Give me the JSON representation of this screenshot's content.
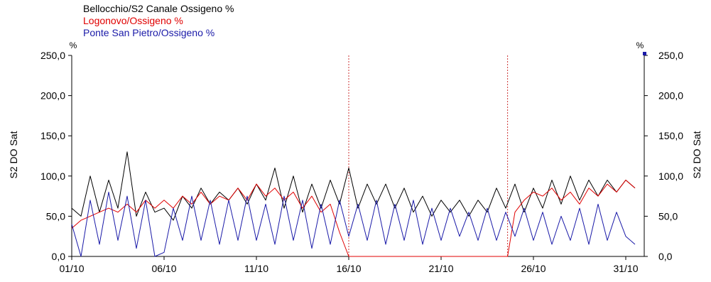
{
  "chart_data": {
    "type": "line",
    "legend": [
      {
        "label": "Bellocchio/S2 Canale Ossigeno %",
        "color": "#000000"
      },
      {
        "label": "Logonovo/Ossigeno %",
        "color": "#e00000"
      },
      {
        "label": "Ponte San Pietro/Ossigeno %",
        "color": "#1a1aa8"
      }
    ],
    "ylabel_left": "S2 DO Sat",
    "ylabel_right": "S2 DO Sat",
    "unit_left": "%",
    "unit_right": "%",
    "ylim": [
      0,
      250
    ],
    "yticks": [
      "0,0",
      "50,0",
      "100,0",
      "150,0",
      "200,0",
      "250,0"
    ],
    "xlim": [
      1,
      32
    ],
    "xticks": [
      {
        "label": "01/10",
        "day": 1
      },
      {
        "label": "06/10",
        "day": 6
      },
      {
        "label": "11/10",
        "day": 11
      },
      {
        "label": "16/10",
        "day": 16
      },
      {
        "label": "21/10",
        "day": 21
      },
      {
        "label": "26/10",
        "day": 26
      },
      {
        "label": "31/10",
        "day": 31
      }
    ],
    "markers_day": [
      16.0,
      24.6
    ],
    "series": [
      {
        "name": "Bellocchio/S2 Canale Ossigeno %",
        "color": "#000000",
        "x": [
          1.0,
          1.5,
          2.0,
          2.5,
          3.0,
          3.5,
          4.0,
          4.5,
          5.0,
          5.5,
          6.0,
          6.5,
          7.0,
          7.5,
          8.0,
          8.5,
          9.0,
          9.5,
          10.0,
          10.5,
          11.0,
          11.5,
          12.0,
          12.5,
          13.0,
          13.5,
          14.0,
          14.5,
          15.0,
          15.5,
          16.0,
          16.5,
          17.0,
          17.5,
          18.0,
          18.5,
          19.0,
          19.5,
          20.0,
          20.5,
          21.0,
          21.5,
          22.0,
          22.5,
          23.0,
          23.5,
          24.0,
          24.5,
          25.0,
          25.5,
          26.0,
          26.5,
          27.0,
          27.5,
          28.0,
          28.5,
          29.0,
          29.5,
          30.0,
          30.5,
          31.0,
          31.5
        ],
        "y": [
          60,
          50,
          100,
          55,
          95,
          60,
          130,
          50,
          80,
          55,
          60,
          45,
          75,
          60,
          85,
          65,
          80,
          70,
          85,
          65,
          90,
          70,
          110,
          60,
          100,
          55,
          90,
          60,
          95,
          65,
          110,
          60,
          90,
          65,
          90,
          60,
          85,
          55,
          75,
          50,
          70,
          55,
          70,
          50,
          70,
          55,
          85,
          60,
          90,
          55,
          85,
          60,
          95,
          65,
          100,
          70,
          95,
          75,
          95,
          80,
          95,
          85
        ]
      },
      {
        "name": "Logonovo/Ossigeno %",
        "color": "#e00000",
        "x": [
          1.0,
          1.5,
          2.0,
          2.5,
          3.0,
          3.5,
          4.0,
          4.5,
          5.0,
          5.5,
          6.0,
          6.5,
          7.0,
          7.5,
          8.0,
          8.5,
          9.0,
          9.5,
          10.0,
          10.5,
          11.0,
          11.5,
          12.0,
          12.5,
          13.0,
          13.5,
          14.0,
          14.5,
          15.0,
          15.5,
          16.0,
          24.6,
          25.0,
          25.5,
          26.0,
          26.5,
          27.0,
          27.5,
          28.0,
          28.5,
          29.0,
          29.5,
          30.0,
          30.5,
          31.0,
          31.5
        ],
        "y": [
          35,
          45,
          50,
          55,
          60,
          55,
          65,
          55,
          70,
          60,
          70,
          60,
          75,
          65,
          80,
          65,
          75,
          70,
          85,
          70,
          90,
          75,
          85,
          70,
          80,
          60,
          75,
          55,
          65,
          30,
          0,
          0,
          55,
          70,
          80,
          75,
          85,
          70,
          80,
          65,
          85,
          75,
          90,
          80,
          95,
          85
        ]
      },
      {
        "name": "Ponte San Pietro/Ossigeno %",
        "color": "#1a1aa8",
        "x": [
          1.0,
          1.5,
          2.0,
          2.5,
          3.0,
          3.5,
          4.0,
          4.5,
          5.0,
          5.5,
          6.0,
          6.5,
          7.0,
          7.5,
          8.0,
          8.5,
          9.0,
          9.5,
          10.0,
          10.5,
          11.0,
          11.5,
          12.0,
          12.5,
          13.0,
          13.5,
          14.0,
          14.5,
          15.0,
          15.5,
          16.0,
          16.5,
          17.0,
          17.5,
          18.0,
          18.5,
          19.0,
          19.5,
          20.0,
          20.5,
          21.0,
          21.5,
          22.0,
          22.5,
          23.0,
          23.5,
          24.0,
          24.5,
          25.0,
          25.5,
          26.0,
          26.5,
          27.0,
          27.5,
          28.0,
          28.5,
          29.0,
          29.5,
          30.0,
          30.5,
          31.0,
          31.5
        ],
        "y": [
          40,
          0,
          70,
          15,
          80,
          20,
          75,
          10,
          70,
          0,
          5,
          60,
          20,
          75,
          20,
          70,
          15,
          70,
          20,
          75,
          20,
          65,
          15,
          75,
          20,
          70,
          10,
          65,
          15,
          70,
          25,
          65,
          20,
          70,
          15,
          65,
          20,
          70,
          15,
          60,
          20,
          60,
          25,
          55,
          20,
          60,
          20,
          55,
          25,
          60,
          20,
          55,
          15,
          50,
          20,
          60,
          15,
          65,
          20,
          55,
          25,
          15
        ]
      }
    ]
  }
}
